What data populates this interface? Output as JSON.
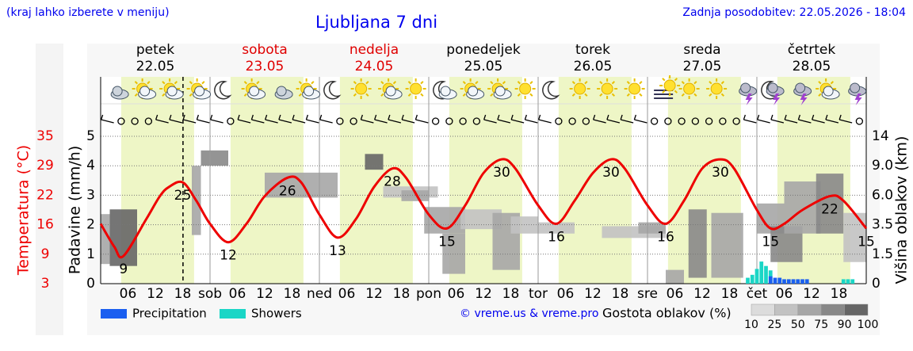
{
  "header": {
    "note": "(kraj lahko izberete v meniju)",
    "title": "Ljubljana 7 dni",
    "updated": "Zadnja posodobitev: 22.05.2026 - 18:04"
  },
  "chart_data": {
    "type": "line",
    "y_label": "Padavine (mm/h)",
    "ylim": [
      0,
      5
    ],
    "yticks": [
      0,
      1,
      2,
      3,
      4,
      5
    ],
    "grid": true,
    "temp_label": "Temperatura (°C)",
    "temp_color": "#ee0000",
    "templim": [
      3,
      35
    ],
    "tempticks": [
      3,
      {
        "value": 9.4,
        "label": "9"
      },
      {
        "value": 15.8,
        "label": "16"
      },
      {
        "value": 22.2,
        "label": "22"
      },
      {
        "value": 28.6,
        "label": "29"
      },
      35
    ],
    "y2_label": "Višina oblakov (km)",
    "y2ticks": [
      0,
      1.5,
      3.5,
      {
        "value": 6,
        "label": "6.0"
      },
      {
        "value": 9,
        "label": "9.0"
      },
      14
    ],
    "xlim": [
      0,
      168
    ],
    "days": [
      {
        "name": "petek",
        "date": "22.05",
        "color": "#000000"
      },
      {
        "name": "sobota",
        "date": "23.05",
        "color": "#e00000"
      },
      {
        "name": "nedelja",
        "date": "24.05",
        "color": "#e00000"
      },
      {
        "name": "ponedeljek",
        "date": "25.05",
        "color": "#000000"
      },
      {
        "name": "torek",
        "date": "26.05",
        "color": "#000000"
      },
      {
        "name": "sreda",
        "date": "27.05",
        "color": "#000000"
      },
      {
        "name": "četrtek",
        "date": "28.05",
        "color": "#000000"
      }
    ],
    "day_abbr": [
      "sob",
      "ned",
      "pon",
      "tor",
      "sre",
      "čet"
    ],
    "hour_ticks": [
      {
        "value": 6,
        "label": "06"
      },
      12,
      18
    ],
    "daylight": [
      4.5,
      20.5
    ],
    "now": 18.07,
    "temperature": {
      "color": "#ee0000",
      "x": [
        0,
        3,
        5,
        10,
        13,
        15,
        18,
        21,
        24,
        28,
        32,
        36,
        41,
        44,
        48,
        52,
        56,
        60,
        64,
        67,
        72,
        76,
        80,
        84,
        88,
        91,
        96,
        100,
        104,
        108,
        112,
        115,
        120,
        124,
        128,
        132,
        136,
        139,
        144,
        147,
        150,
        154,
        160,
        163,
        168
      ],
      "values": [
        16,
        11,
        9,
        17,
        22,
        24,
        25,
        21,
        16,
        12,
        16,
        22,
        26,
        25,
        18,
        13,
        17,
        24,
        28,
        26,
        18,
        15,
        20,
        27,
        30,
        28,
        20,
        16,
        21,
        27,
        30,
        28,
        20,
        16,
        21,
        28,
        30,
        28,
        19,
        15,
        16,
        19,
        22,
        21,
        15
      ]
    },
    "extremes": {
      "x": [
        5,
        18,
        28,
        41,
        52,
        64,
        76,
        88,
        100,
        112,
        124,
        136,
        147,
        160,
        168
      ],
      "values": [
        9,
        25,
        12,
        26,
        13,
        28,
        15,
        30,
        16,
        30,
        16,
        30,
        15,
        22,
        15
      ]
    },
    "precipitation": {
      "name": "Precipitation",
      "color": "#1a5ff0",
      "x": [
        147,
        148,
        149,
        150,
        151,
        152,
        153,
        154,
        155
      ],
      "values": [
        0.25,
        0.2,
        0.2,
        0.15,
        0.15,
        0.15,
        0.15,
        0.15,
        0.15
      ]
    },
    "showers": {
      "name": "Showers",
      "color": "#1ad6c6",
      "x": [
        142,
        143,
        144,
        145,
        146,
        147,
        163,
        164,
        165
      ],
      "values": [
        0.2,
        0.3,
        0.5,
        0.75,
        0.6,
        0.45,
        0.15,
        0.15,
        0.15
      ]
    },
    "clouds": [
      {
        "x": [
          0,
          2
        ],
        "km": [
          1,
          4.4
        ],
        "density": 50
      },
      {
        "x": [
          2,
          8
        ],
        "km": [
          0.9,
          4.8
        ],
        "density": 90
      },
      {
        "x": [
          20,
          22
        ],
        "km": [
          2.8,
          9
        ],
        "density": 50
      },
      {
        "x": [
          22,
          28
        ],
        "km": [
          9,
          11.6
        ],
        "density": 75
      },
      {
        "x": [
          36,
          52
        ],
        "km": [
          5.8,
          8.3
        ],
        "density": 50
      },
      {
        "x": [
          58,
          62
        ],
        "km": [
          8.6,
          11
        ],
        "density": 90
      },
      {
        "x": [
          62,
          74
        ],
        "km": [
          5.8,
          6.9
        ],
        "density": 25
      },
      {
        "x": [
          66,
          72
        ],
        "km": [
          5.5,
          6.5
        ],
        "density": 50
      },
      {
        "x": [
          71,
          80
        ],
        "km": [
          2.9,
          5
        ],
        "density": 50
      },
      {
        "x": [
          75,
          80
        ],
        "km": [
          0.5,
          2.9
        ],
        "density": 50
      },
      {
        "x": [
          79,
          88
        ],
        "km": [
          3.2,
          4.8
        ],
        "density": 25
      },
      {
        "x": [
          86,
          92
        ],
        "km": [
          0.7,
          4.5
        ],
        "density": 50
      },
      {
        "x": [
          90,
          96
        ],
        "km": [
          2.9,
          4.2
        ],
        "density": 25
      },
      {
        "x": [
          96,
          104
        ],
        "km": [
          2.9,
          3.7
        ],
        "density": 25
      },
      {
        "x": [
          110,
          124
        ],
        "km": [
          2.6,
          3.4
        ],
        "density": 25
      },
      {
        "x": [
          118,
          124
        ],
        "km": [
          2.9,
          3.7
        ],
        "density": 50
      },
      {
        "x": [
          124,
          128
        ],
        "km": [
          0,
          0.7
        ],
        "density": 50
      },
      {
        "x": [
          129,
          133
        ],
        "km": [
          0.3,
          4.8
        ],
        "density": 75
      },
      {
        "x": [
          134,
          141
        ],
        "km": [
          0.3,
          4.5
        ],
        "density": 50
      },
      {
        "x": [
          144,
          150
        ],
        "km": [
          2.9,
          5.3
        ],
        "density": 50
      },
      {
        "x": [
          147,
          154
        ],
        "km": [
          1.1,
          3.4
        ],
        "density": 75
      },
      {
        "x": [
          150,
          158
        ],
        "km": [
          2.9,
          7.4
        ],
        "density": 50
      },
      {
        "x": [
          157,
          163
        ],
        "km": [
          2.9,
          8.2
        ],
        "density": 75
      },
      {
        "x": [
          163,
          168
        ],
        "km": [
          1.1,
          4.5
        ],
        "density": 25
      }
    ],
    "cloud_legend": {
      "title": "Gostota oblakov (%)",
      "levels": [
        10,
        25,
        50,
        75,
        90,
        100
      ],
      "colors": [
        "#dcdcdc",
        "#c2c2c2",
        "#a6a6a6",
        "#888888",
        "#666666"
      ]
    },
    "credit": "© vreme.us & vreme.pro"
  }
}
